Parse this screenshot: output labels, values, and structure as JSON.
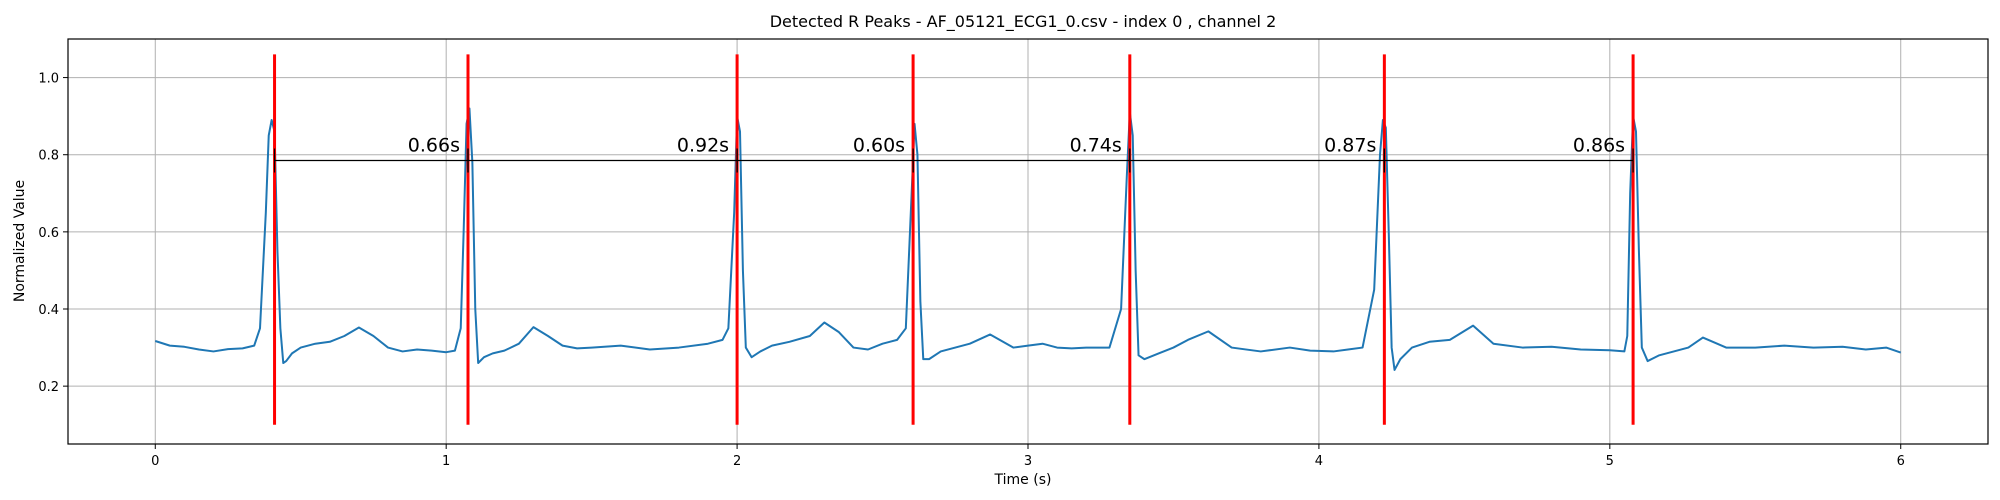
{
  "chart_data": {
    "type": "line",
    "title": "Detected R Peaks - AF_05121_ECG1_0.csv - index 0 , channel 2",
    "xlabel": "Time (s)",
    "ylabel": "Normalized Value",
    "xlim": [
      -0.3,
      6.3
    ],
    "ylim": [
      0.05,
      1.1
    ],
    "x_ticks": [
      0,
      1,
      2,
      3,
      4,
      5,
      6
    ],
    "y_ticks": [
      0.2,
      0.4,
      0.6,
      0.8,
      1.0
    ],
    "x_tick_labels": [
      "0",
      "1",
      "2",
      "3",
      "4",
      "5",
      "6"
    ],
    "y_tick_labels": [
      "0.2",
      "0.4",
      "0.6",
      "0.8",
      "1.0"
    ],
    "grid": true,
    "colors": {
      "signal": "#1f77b4",
      "peak_marker": "#ff0000",
      "interval_line": "#000000",
      "grid": "#b0b0b0"
    },
    "series": [
      {
        "x": [
          0,
          0.05,
          0.1,
          0.15,
          0.2,
          0.25,
          0.3,
          0.34,
          0.36,
          0.38,
          0.39,
          0.4,
          0.41,
          0.42,
          0.43,
          0.44,
          0.45,
          0.47,
          0.5,
          0.55,
          0.6,
          0.65,
          0.7,
          0.75,
          0.8,
          0.85,
          0.9,
          0.95,
          1.0,
          1.03,
          1.05,
          1.06,
          1.07,
          1.08,
          1.09,
          1.1,
          1.11,
          1.13,
          1.16,
          1.2,
          1.25,
          1.3,
          1.35,
          1.4,
          1.45,
          1.5,
          1.6,
          1.7,
          1.8,
          1.9,
          1.95,
          1.97,
          1.99,
          2.0,
          2.01,
          2.02,
          2.03,
          2.05,
          2.08,
          2.12,
          2.18,
          2.25,
          2.3,
          2.35,
          2.4,
          2.45,
          2.5,
          2.55,
          2.58,
          2.6,
          2.61,
          2.62,
          2.63,
          2.64,
          2.66,
          2.7,
          2.75,
          2.8,
          2.87,
          2.95,
          3.0,
          3.05,
          3.1,
          3.15,
          3.2,
          3.28,
          3.32,
          3.34,
          3.35,
          3.36,
          3.37,
          3.38,
          3.4,
          3.45,
          3.5,
          3.55,
          3.62,
          3.7,
          3.8,
          3.9,
          3.97,
          4.05,
          4.1,
          4.15,
          4.19,
          4.21,
          4.22,
          4.23,
          4.24,
          4.25,
          4.26,
          4.28,
          4.32,
          4.38,
          4.45,
          4.53,
          4.6,
          4.7,
          4.8,
          4.9,
          5.0,
          5.05,
          5.06,
          5.07,
          5.08,
          5.09,
          5.1,
          5.11,
          5.13,
          5.17,
          5.22,
          5.27,
          5.32,
          5.4,
          5.5,
          5.6,
          5.7,
          5.8,
          5.88,
          5.95,
          6.0
        ],
        "values": [
          0.317,
          0.305,
          0.302,
          0.295,
          0.29,
          0.296,
          0.298,
          0.305,
          0.35,
          0.65,
          0.85,
          0.89,
          0.86,
          0.55,
          0.35,
          0.26,
          0.265,
          0.285,
          0.3,
          0.31,
          0.315,
          0.33,
          0.352,
          0.33,
          0.3,
          0.29,
          0.295,
          0.292,
          0.288,
          0.292,
          0.35,
          0.6,
          0.88,
          0.92,
          0.78,
          0.4,
          0.26,
          0.275,
          0.285,
          0.292,
          0.31,
          0.353,
          0.33,
          0.305,
          0.298,
          0.3,
          0.305,
          0.295,
          0.3,
          0.31,
          0.32,
          0.35,
          0.65,
          0.9,
          0.86,
          0.5,
          0.3,
          0.275,
          0.29,
          0.305,
          0.315,
          0.33,
          0.365,
          0.34,
          0.3,
          0.295,
          0.31,
          0.32,
          0.35,
          0.7,
          0.88,
          0.8,
          0.42,
          0.27,
          0.27,
          0.29,
          0.3,
          0.31,
          0.334,
          0.3,
          0.305,
          0.31,
          0.3,
          0.298,
          0.3,
          0.3,
          0.4,
          0.75,
          0.91,
          0.85,
          0.5,
          0.28,
          0.27,
          0.285,
          0.3,
          0.32,
          0.342,
          0.3,
          0.29,
          0.3,
          0.292,
          0.29,
          0.295,
          0.3,
          0.45,
          0.8,
          0.89,
          0.87,
          0.6,
          0.3,
          0.242,
          0.27,
          0.3,
          0.315,
          0.32,
          0.357,
          0.31,
          0.3,
          0.302,
          0.295,
          0.293,
          0.29,
          0.33,
          0.7,
          0.9,
          0.86,
          0.55,
          0.3,
          0.265,
          0.28,
          0.29,
          0.3,
          0.326,
          0.3,
          0.3,
          0.305,
          0.3,
          0.302,
          0.295,
          0.3,
          0.287
        ]
      }
    ],
    "r_peaks": {
      "times": [
        0.41,
        1.075,
        2.0,
        2.605,
        3.35,
        4.225,
        5.08
      ],
      "marker_ymin": 0.1,
      "marker_ymax": 1.06
    },
    "rr_intervals": {
      "line_y": 0.785,
      "values": [
        0.66,
        0.92,
        0.6,
        0.74,
        0.87,
        0.86
      ],
      "labels": [
        "0.66s",
        "0.92s",
        "0.60s",
        "0.74s",
        "0.87s",
        "0.86s"
      ]
    }
  }
}
